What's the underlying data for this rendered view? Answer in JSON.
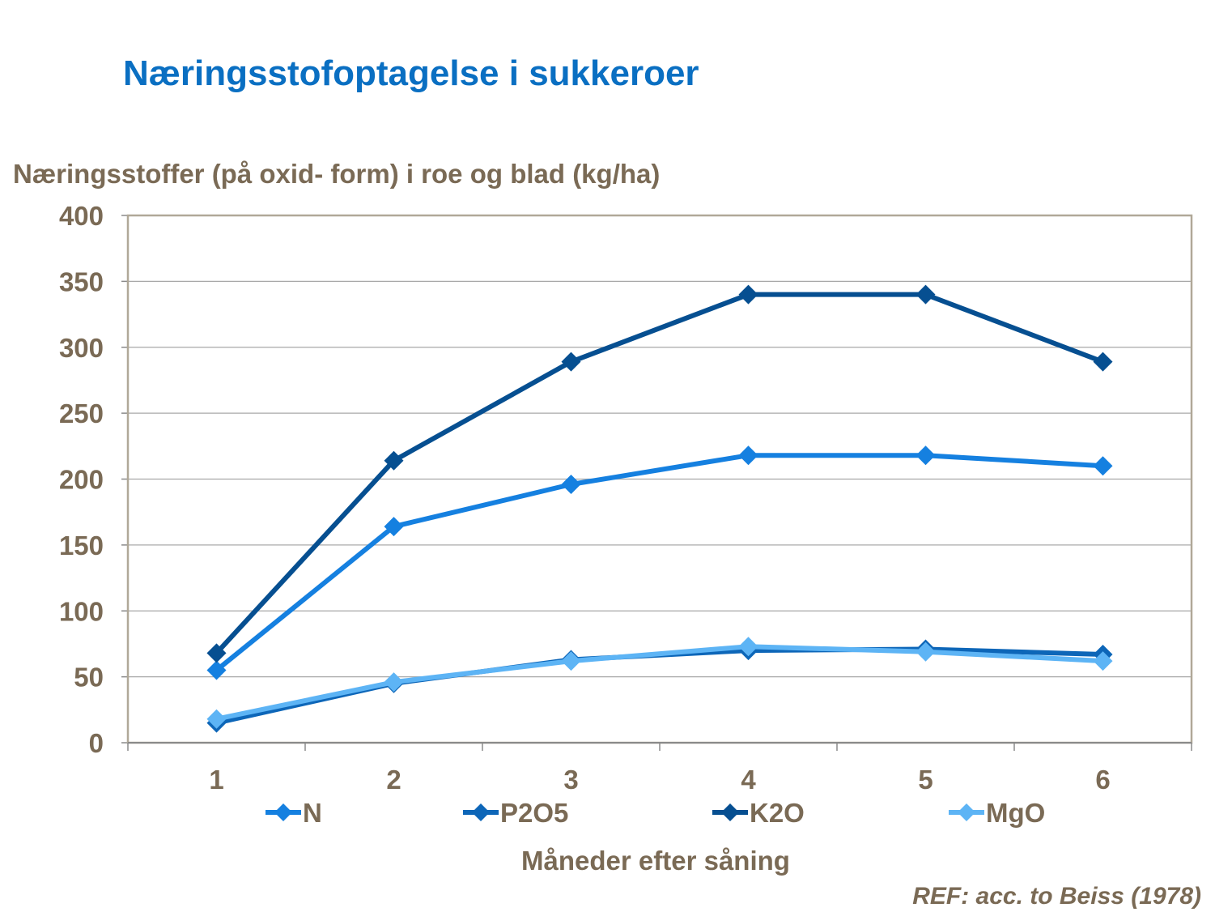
{
  "chart_data": {
    "type": "line",
    "title": "Næringsstofoptagelse i sukkeroer",
    "ylabel": "Næringsstoffer (på oxid- form) i roe og blad (kg/ha)",
    "xlabel": "Måneder efter såning",
    "x": [
      "1",
      "2",
      "3",
      "4",
      "5",
      "6"
    ],
    "yticks": [
      "0",
      "50",
      "100",
      "150",
      "200",
      "250",
      "300",
      "350",
      "400"
    ],
    "ylim": [
      0,
      400
    ],
    "grid": true,
    "legend_position": "bottom",
    "series": [
      {
        "name": "N",
        "values": [
          55,
          164,
          196,
          218,
          218,
          210
        ],
        "color": "#1580e0"
      },
      {
        "name": "P2O5",
        "values": [
          15,
          45,
          63,
          70,
          71,
          67
        ],
        "color": "#0d66b8"
      },
      {
        "name": "K2O",
        "values": [
          68,
          214,
          289,
          340,
          340,
          289
        ],
        "color": "#064f91"
      },
      {
        "name": "MgO",
        "values": [
          18,
          46,
          62,
          73,
          69,
          62
        ],
        "color": "#5db4f5"
      }
    ]
  },
  "ref_note": "REF: acc. to Beiss (1978)"
}
